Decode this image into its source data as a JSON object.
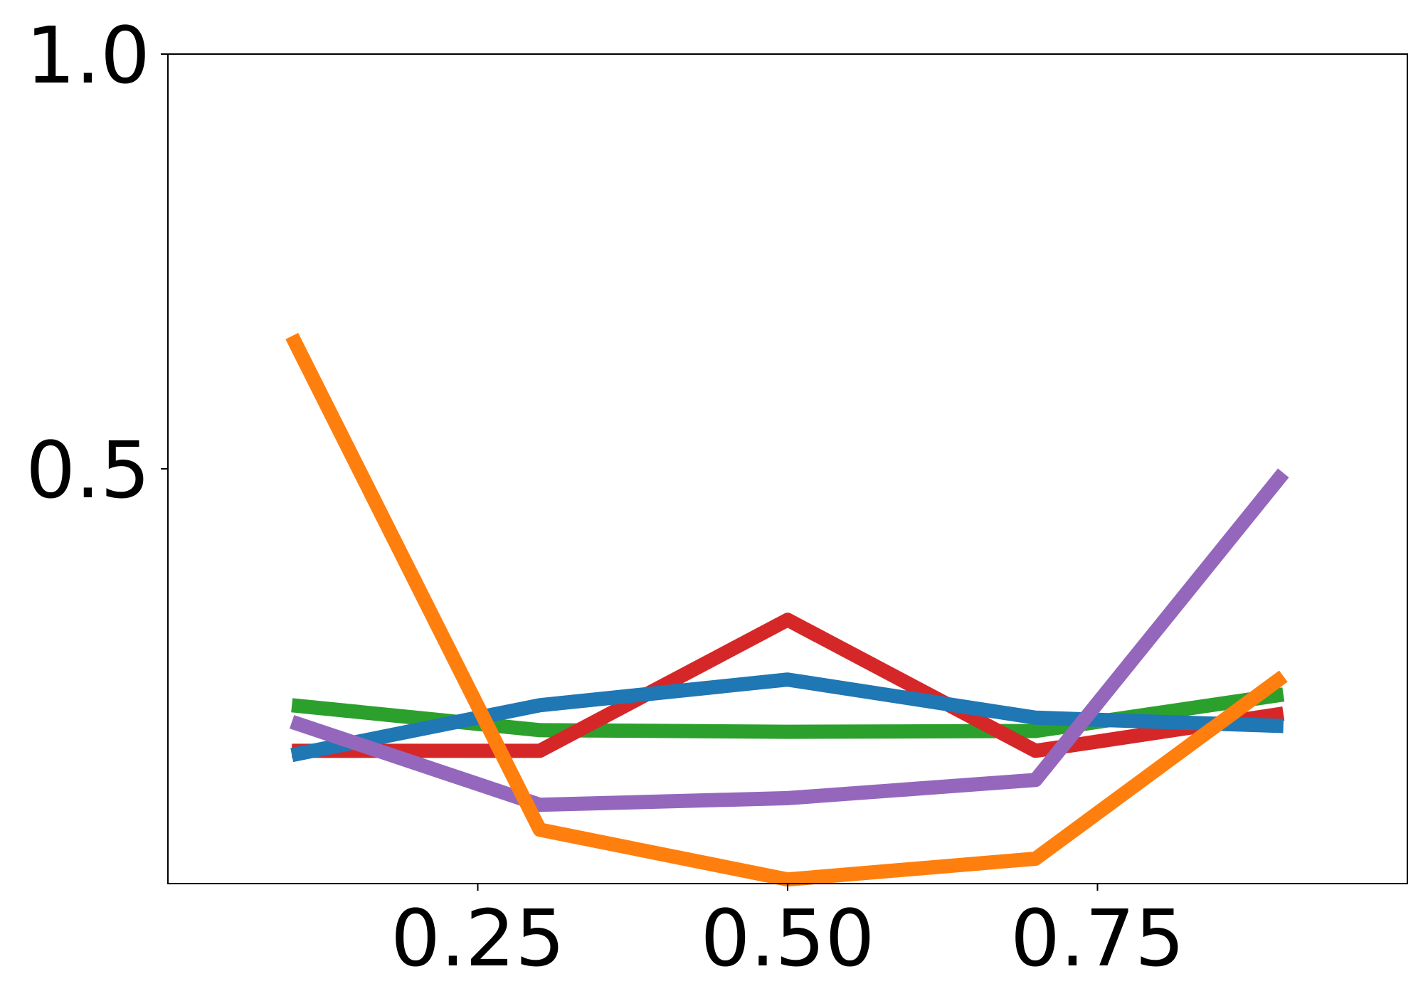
{
  "chart_data": {
    "type": "line",
    "title": "",
    "xlabel": "",
    "ylabel": "",
    "xlim": [
      0,
      1
    ],
    "ylim": [
      0,
      1
    ],
    "xticks": [
      {
        "value": 0.25,
        "label": "0.25"
      },
      {
        "value": 0.5,
        "label": "0.50"
      },
      {
        "value": 0.75,
        "label": "0.75"
      }
    ],
    "yticks": [
      {
        "value": 0.5,
        "label": "0.5"
      },
      {
        "value": 1.0,
        "label": "1.0"
      }
    ],
    "grid": false,
    "x": [
      0.1,
      0.3,
      0.5,
      0.7,
      0.9
    ],
    "series": [
      {
        "color": "#2ca02c",
        "values": [
          0.215,
          0.185,
          0.183,
          0.184,
          0.228
        ]
      },
      {
        "color": "#d62728",
        "values": [
          0.16,
          0.16,
          0.318,
          0.16,
          0.205
        ]
      },
      {
        "color": "#1f77b4",
        "values": [
          0.155,
          0.215,
          0.246,
          0.2,
          0.19
        ]
      },
      {
        "color": "#9467bd",
        "values": [
          0.195,
          0.095,
          0.103,
          0.125,
          0.495
        ]
      },
      {
        "color": "#ff7f0e",
        "values": [
          0.66,
          0.065,
          0.005,
          0.03,
          0.25
        ]
      }
    ]
  }
}
